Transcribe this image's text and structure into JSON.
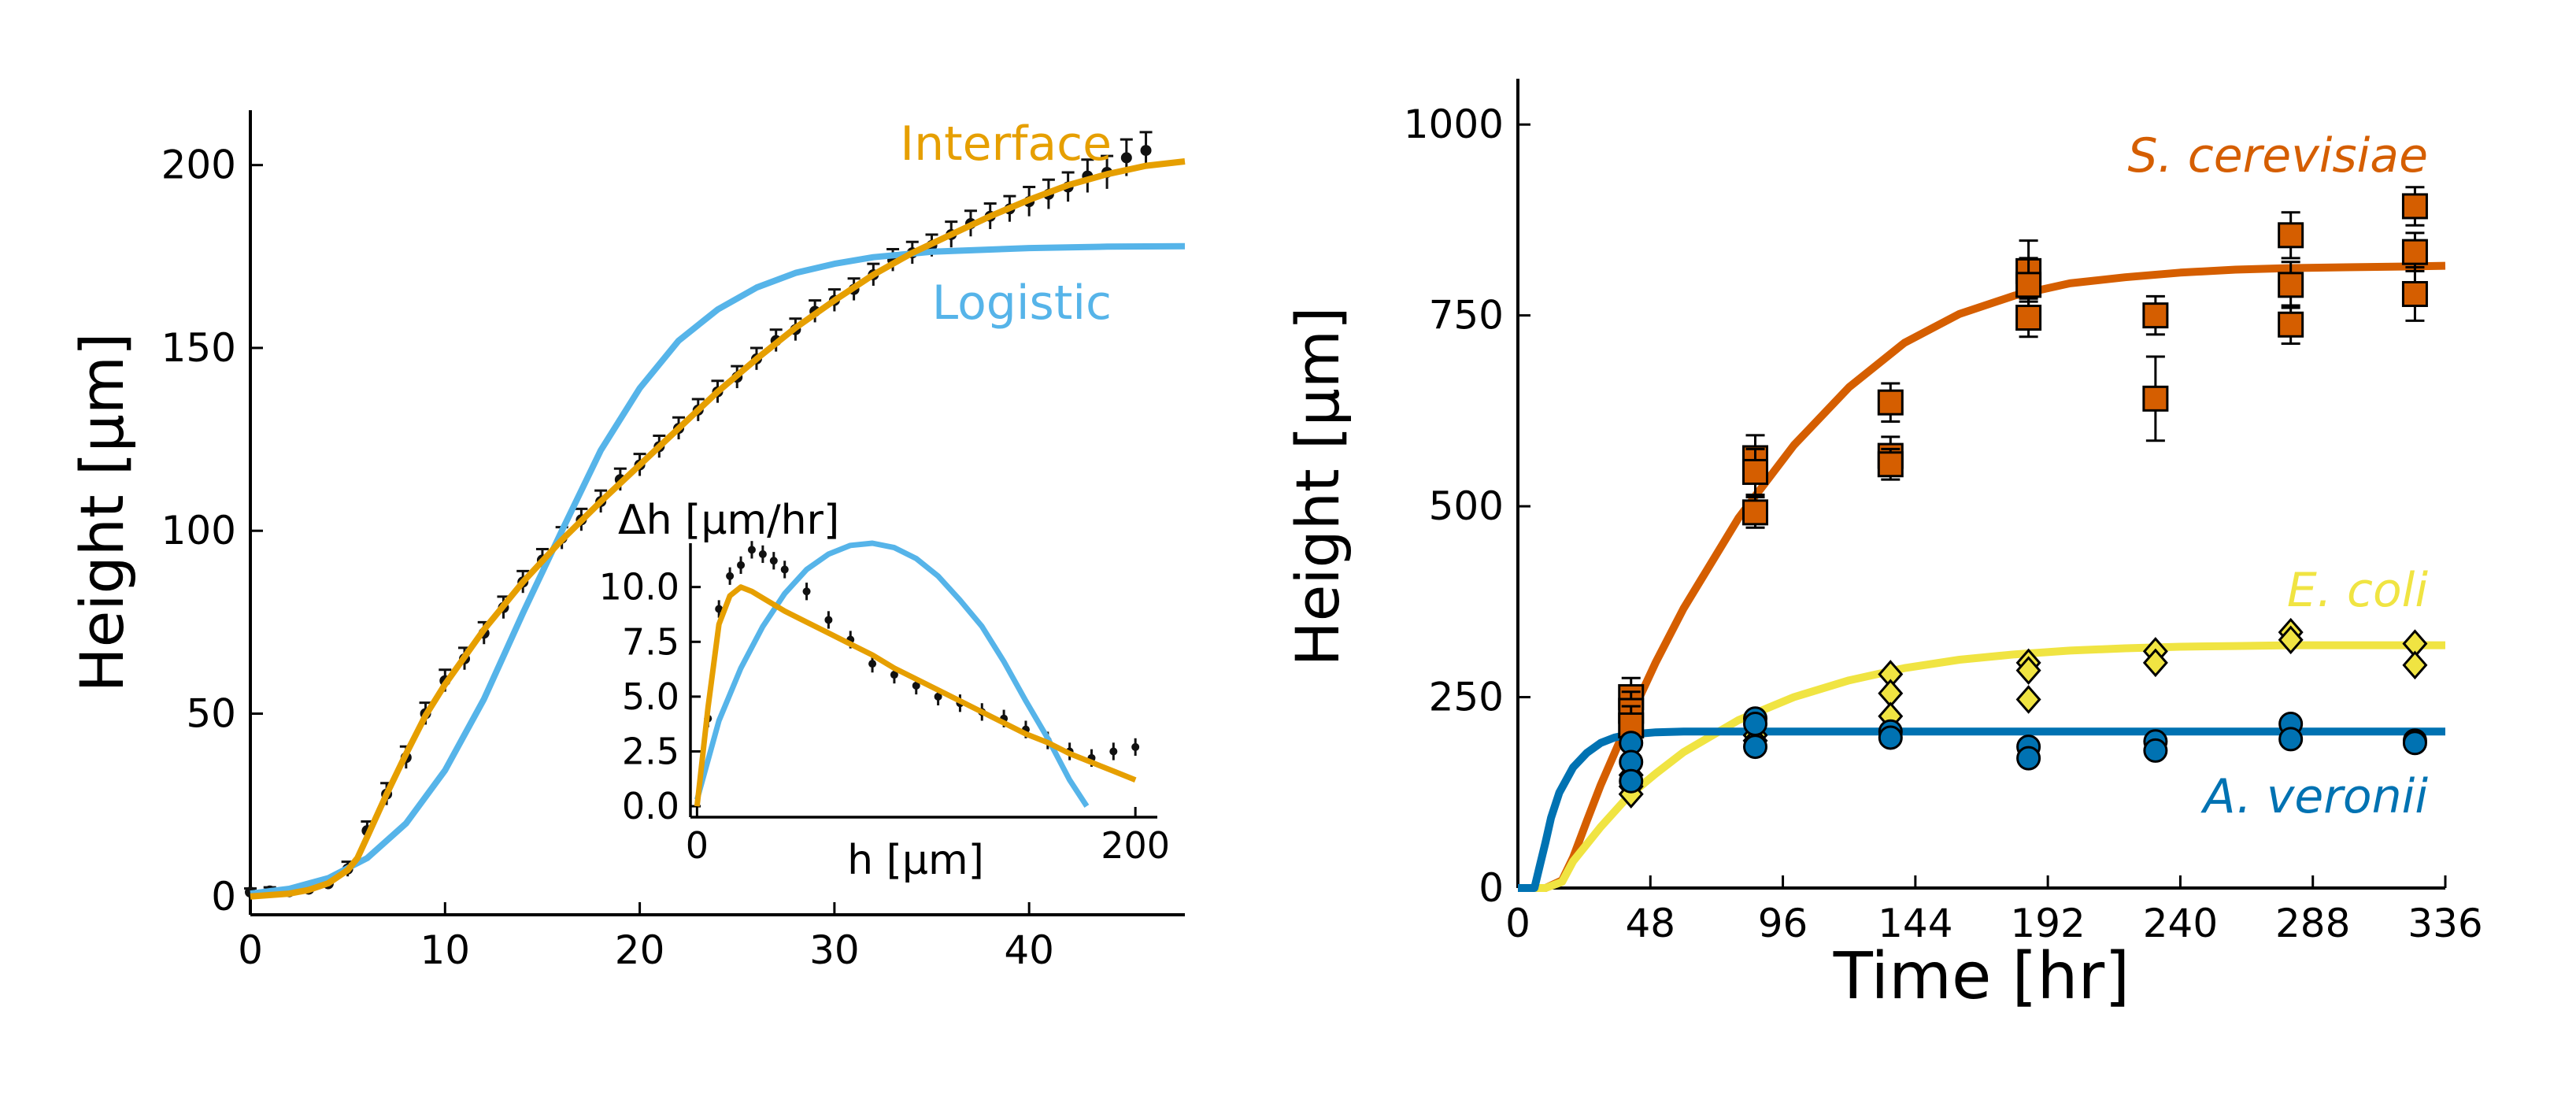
{
  "chart_data": [
    {
      "type": "line",
      "xlabel": "",
      "ylabel": "Height [μm]",
      "xlim": [
        0,
        48
      ],
      "ylim": [
        -5,
        215
      ],
      "xticks": [
        0,
        10,
        20,
        30,
        40
      ],
      "yticks": [
        0,
        50,
        100,
        150,
        200
      ],
      "annotations": [
        "Interface",
        "Logistic"
      ],
      "colors": {
        "Interface": "#E69F00",
        "Logistic": "#56B4E9",
        "data": "#111111"
      },
      "series": [
        {
          "name": "Interface",
          "x": [
            0,
            2,
            3,
            4,
            5,
            5.5,
            6,
            7,
            8,
            9,
            10,
            12,
            14,
            16,
            18,
            20,
            22,
            24,
            26,
            28,
            30,
            32,
            34,
            36,
            38,
            40,
            42,
            44,
            46,
            48
          ],
          "values": [
            0,
            0.8,
            1.8,
            3.6,
            7.2,
            10.5,
            16.3,
            28,
            39,
            49.5,
            58,
            73,
            86,
            97.5,
            108,
            118,
            128,
            138,
            147,
            155.5,
            163,
            170,
            176,
            181,
            186,
            190.5,
            194.5,
            197.5,
            199.8,
            201
          ]
        },
        {
          "name": "Logistic",
          "x": [
            0,
            2,
            4,
            6,
            8,
            10,
            12,
            14,
            16,
            18,
            20,
            22,
            24,
            26,
            28,
            30,
            32,
            35,
            40,
            44,
            48
          ],
          "values": [
            0.8,
            2.1,
            5,
            10.5,
            20,
            34.5,
            54,
            77.5,
            100,
            122,
            139,
            152,
            160.5,
            166.5,
            170.5,
            173,
            174.8,
            176.3,
            177.3,
            177.7,
            177.8
          ]
        },
        {
          "name": "",
          "x": [
            0,
            1,
            2,
            3,
            4,
            5,
            6,
            7,
            8,
            9,
            10,
            11,
            12,
            13,
            14,
            15,
            16,
            17,
            18,
            19,
            20,
            21,
            22,
            23,
            24,
            25,
            26,
            27,
            28,
            29,
            30,
            31,
            32,
            33,
            34,
            35,
            36,
            37,
            38,
            39,
            40,
            41,
            42,
            43,
            44,
            45,
            46
          ],
          "values": [
            1.2,
            1.5,
            1.3,
            2,
            3.5,
            7.5,
            18,
            28,
            38,
            50,
            59,
            65,
            72,
            79,
            86,
            92,
            98,
            103,
            108,
            114,
            118,
            123,
            128,
            133,
            138,
            142,
            147,
            152,
            155,
            160,
            163,
            166,
            170,
            174,
            176,
            178,
            181,
            184,
            186,
            188,
            190,
            192,
            194,
            197,
            198,
            202,
            204
          ],
          "errors": [
            1,
            1,
            1,
            1,
            1.5,
            2,
            2.5,
            3,
            3,
            3,
            3,
            3,
            3,
            3,
            3,
            3,
            3,
            3,
            3,
            3,
            3,
            3,
            3,
            3,
            3,
            3,
            3,
            3,
            3,
            3,
            3,
            3,
            3,
            3,
            3,
            3,
            3.5,
            3.5,
            3.5,
            3.5,
            4,
            4,
            4,
            4.5,
            4.5,
            5,
            5
          ]
        }
      ]
    },
    {
      "type": "line",
      "xlabel": "h [μm]",
      "ylabel": "Δh [μm/hr]",
      "xlim": [
        -3,
        210
      ],
      "ylim": [
        -0.5,
        12
      ],
      "xticks": [
        0,
        200
      ],
      "yticks": [
        0.0,
        2.5,
        5.0,
        7.5,
        10.0
      ],
      "ytick_labels": [
        "0.0",
        "2.5",
        "5.0",
        "7.5",
        "10.0"
      ],
      "series": [
        {
          "name": "Interface",
          "x": [
            0,
            5,
            10,
            15,
            20,
            25,
            30,
            40,
            50,
            60,
            70,
            80,
            90,
            100,
            110,
            120,
            130,
            140,
            150,
            160,
            170,
            180,
            190,
            200
          ],
          "values": [
            0,
            4.5,
            8.3,
            9.6,
            10,
            9.8,
            9.5,
            8.9,
            8.4,
            7.9,
            7.4,
            6.9,
            6.3,
            5.8,
            5.3,
            4.8,
            4.3,
            3.8,
            3.3,
            2.9,
            2.4,
            2,
            1.6,
            1.2
          ]
        },
        {
          "name": "Logistic",
          "x": [
            0,
            10,
            20,
            30,
            40,
            50,
            60,
            70,
            80,
            90,
            100,
            110,
            120,
            130,
            140,
            150,
            160,
            170,
            177.8
          ],
          "values": [
            0.3,
            3.9,
            6.3,
            8.2,
            9.7,
            10.8,
            11.5,
            11.9,
            12,
            11.8,
            11.3,
            10.5,
            9.4,
            8.2,
            6.6,
            4.8,
            3.1,
            1.2,
            0
          ]
        },
        {
          "name": "",
          "x": [
            5,
            10,
            15,
            20,
            25,
            30,
            35,
            40,
            50,
            60,
            70,
            80,
            90,
            100,
            110,
            120,
            130,
            140,
            150,
            160,
            170,
            180,
            190,
            200
          ],
          "values": [
            4,
            9,
            10.5,
            11,
            11.7,
            11.5,
            11.2,
            10.8,
            9.8,
            8.5,
            7.6,
            6.5,
            6,
            5.5,
            5,
            4.7,
            4.3,
            4,
            3.5,
            3,
            2.5,
            2.2,
            2.5,
            2.7
          ]
        }
      ]
    },
    {
      "type": "scatter",
      "xlabel": "Time [hr]",
      "ylabel": "Height [μm]",
      "xlim": [
        0,
        336
      ],
      "ylim": [
        0,
        1060
      ],
      "xticks": [
        0,
        48,
        96,
        144,
        192,
        240,
        288,
        336
      ],
      "yticks": [
        0,
        250,
        500,
        750,
        1000
      ],
      "series": [
        {
          "name": "S. cerevisiae",
          "color": "#D55E00",
          "marker": "square",
          "fit_x": [
            0,
            10,
            16,
            20,
            25,
            30,
            40,
            50,
            60,
            80,
            100,
            120,
            140,
            160,
            180,
            200,
            220,
            240,
            260,
            280,
            300,
            320,
            336
          ],
          "fit_y": [
            0,
            0,
            10,
            40,
            88,
            135,
            218,
            296,
            366,
            485,
            580,
            656,
            714,
            752,
            776,
            792,
            800,
            806,
            810,
            812,
            813,
            814,
            815
          ],
          "points": [
            [
              41,
              250
            ],
            [
              41,
              232
            ],
            [
              41,
              213
            ],
            [
              86,
              563
            ],
            [
              86,
              545
            ],
            [
              86,
              492
            ],
            [
              135,
              636
            ],
            [
              135,
              566
            ],
            [
              135,
              555
            ],
            [
              185,
              808
            ],
            [
              185,
              790
            ],
            [
              185,
              747
            ],
            [
              231,
              750
            ],
            [
              231,
              641
            ],
            [
              280,
              855
            ],
            [
              280,
              790
            ],
            [
              280,
              738
            ],
            [
              325,
              893
            ],
            [
              325,
              833
            ],
            [
              325,
              778
            ]
          ],
          "errors": [
            25,
            25,
            25,
            30,
            30,
            20,
            25,
            25,
            20,
            40,
            35,
            25,
            25,
            55,
            30,
            30,
            25,
            25,
            25,
            35
          ]
        },
        {
          "name": "E. coli",
          "color": "#F0E442",
          "marker": "diamond",
          "fit_x": [
            0,
            10,
            16,
            20,
            30,
            40,
            50,
            60,
            80,
            100,
            120,
            140,
            160,
            180,
            200,
            220,
            240,
            260,
            280,
            300,
            320,
            336
          ],
          "fit_y": [
            0,
            0,
            8,
            35,
            80,
            120,
            150,
            178,
            220,
            250,
            272,
            288,
            299,
            306,
            311,
            314,
            316,
            317,
            318,
            318,
            318,
            318
          ],
          "points": [
            [
              41,
              148
            ],
            [
              41,
              133
            ],
            [
              41,
              123
            ],
            [
              86,
              200
            ],
            [
              86,
              193
            ],
            [
              135,
              280
            ],
            [
              135,
              255
            ],
            [
              135,
              225
            ],
            [
              185,
              295
            ],
            [
              185,
              285
            ],
            [
              185,
              247
            ],
            [
              231,
              310
            ],
            [
              231,
              295
            ],
            [
              280,
              335
            ],
            [
              280,
              325
            ],
            [
              325,
              320
            ],
            [
              325,
              292
            ]
          ]
        },
        {
          "name": "A. veronii",
          "color": "#0072B2",
          "marker": "circle",
          "fit_x": [
            0,
            6,
            8,
            10,
            12,
            15,
            20,
            25,
            30,
            35,
            40,
            50,
            60,
            80,
            120,
            200,
            336
          ],
          "fit_y": [
            0,
            0,
            30,
            60,
            92,
            125,
            158,
            177,
            190,
            197,
            201,
            204,
            205,
            205,
            205,
            205,
            205
          ],
          "points": [
            [
              41,
              190
            ],
            [
              41,
              165
            ],
            [
              41,
              140
            ],
            [
              86,
              222
            ],
            [
              86,
              215
            ],
            [
              86,
              185
            ],
            [
              135,
              205
            ],
            [
              135,
              197
            ],
            [
              185,
              185
            ],
            [
              185,
              170
            ],
            [
              231,
              192
            ],
            [
              231,
              180
            ],
            [
              280,
              215
            ],
            [
              280,
              195
            ],
            [
              325,
              193
            ],
            [
              325,
              190
            ]
          ]
        }
      ]
    }
  ]
}
